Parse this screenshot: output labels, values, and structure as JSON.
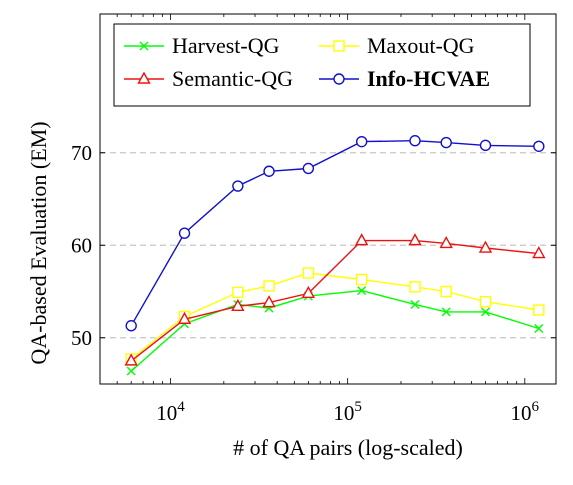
{
  "chart_data": {
    "type": "line",
    "title": "",
    "xlabel": "# of QA pairs (log-scaled)",
    "ylabel": "QA-based Evaluation (EM)",
    "xscale": "log",
    "xlim": [
      4000,
      1500000
    ],
    "ylim": [
      45,
      85
    ],
    "grid": "horizontal dashed",
    "legend_position": "top",
    "x_ticks": [
      {
        "value": 10000,
        "base": "10",
        "exp": "4"
      },
      {
        "value": 100000,
        "base": "10",
        "exp": "5"
      },
      {
        "value": 1000000,
        "base": "10",
        "exp": "6"
      }
    ],
    "y_ticks": [
      {
        "value": 50,
        "label": "50"
      },
      {
        "value": 60,
        "label": "60"
      },
      {
        "value": 70,
        "label": "70"
      }
    ],
    "x": [
      6000,
      12000,
      24000,
      36000,
      60000,
      120000,
      240000,
      360000,
      600000,
      1200000
    ],
    "series": [
      {
        "name": "Harvest-QG",
        "color": "#00ff00",
        "marker": "x",
        "bold": false,
        "values": [
          46.4,
          51.5,
          53.6,
          53.2,
          54.5,
          55.1,
          53.6,
          52.8,
          52.8,
          51.0
        ]
      },
      {
        "name": "Maxout-QG",
        "color": "#ffff00",
        "marker": "square",
        "bold": false,
        "values": [
          47.7,
          52.3,
          54.9,
          55.6,
          57.0,
          56.3,
          55.5,
          55.0,
          53.9,
          53.0
        ]
      },
      {
        "name": "Semantic-QG",
        "color": "#ee1111",
        "marker": "triangle",
        "bold": false,
        "values": [
          47.5,
          52.0,
          53.4,
          53.8,
          54.8,
          60.5,
          60.5,
          60.2,
          59.7,
          59.1
        ]
      },
      {
        "name": "Info-HCVAE",
        "color": "#1111cc",
        "marker": "circle",
        "bold": true,
        "values": [
          51.3,
          61.3,
          66.4,
          68.0,
          68.3,
          71.2,
          71.3,
          71.1,
          70.8,
          70.7
        ]
      }
    ]
  }
}
